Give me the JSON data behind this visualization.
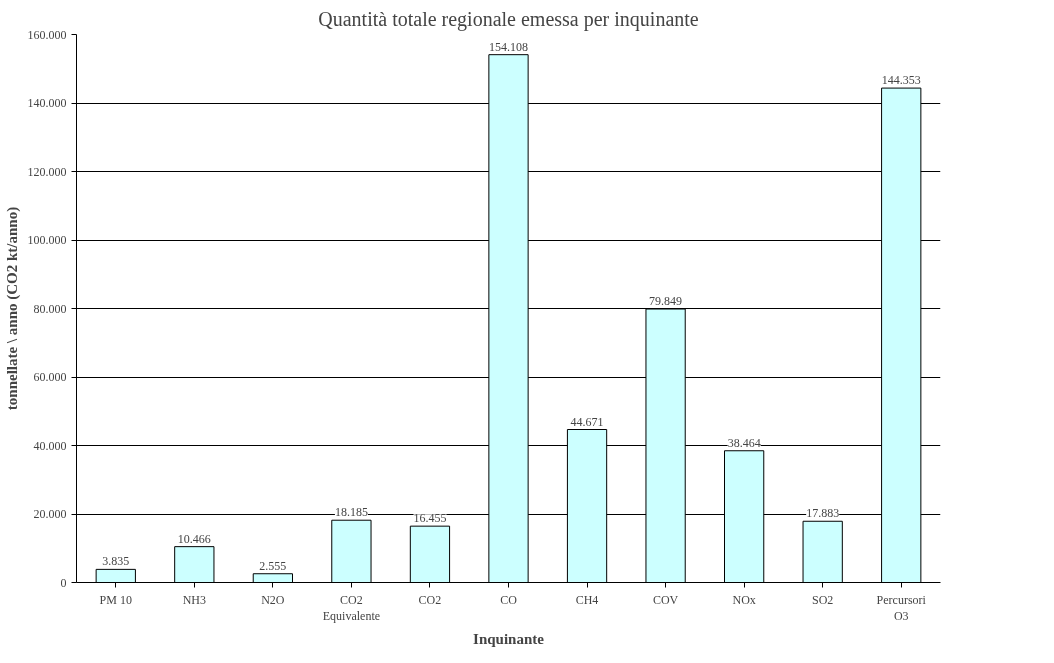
{
  "chart_data": {
    "type": "bar",
    "title": "Quantità totale regionale emessa per inquinante",
    "xlabel": "Inquinante",
    "ylabel": "tonnellate \\ anno (CO2 kt/anno)",
    "categories": [
      "PM 10",
      "NH3",
      "N2O",
      "CO2\nEquivalente",
      "CO2",
      "CO",
      "CH4",
      "COV",
      "NOx",
      "SO2",
      "Percursori\nO3"
    ],
    "values": [
      3835,
      10466,
      2555,
      18185,
      16455,
      154108,
      44671,
      79849,
      38464,
      17883,
      144353
    ],
    "value_labels": [
      "3.835",
      "10.466",
      "2.555",
      "18.185",
      "16.455",
      "154.108",
      "44.671",
      "79.849",
      "38.464",
      "17.883",
      "144.353"
    ],
    "color": "#ccffff",
    "ylim": [
      0,
      160000
    ],
    "yticks": [
      {
        "value": 0,
        "label": "0"
      },
      {
        "value": 20000,
        "label": "20.000"
      },
      {
        "value": 40000,
        "label": "40.000"
      },
      {
        "value": 60000,
        "label": "60.000"
      },
      {
        "value": 80000,
        "label": "80.000"
      },
      {
        "value": 100000,
        "label": "100.000"
      },
      {
        "value": 120000,
        "label": "120.000"
      },
      {
        "value": 140000,
        "label": "140.000"
      },
      {
        "value": 160000,
        "label": "160.000"
      }
    ],
    "grid": "y"
  }
}
